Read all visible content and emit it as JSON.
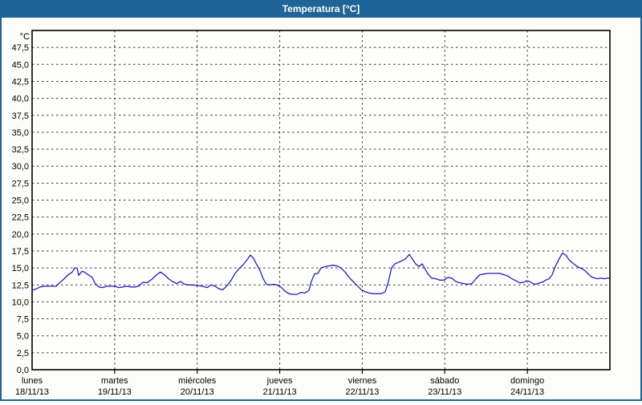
{
  "window": {
    "title": "Temperatura [°C]"
  },
  "colors": {
    "titlebar_bg": "#1e6496",
    "titlebar_text": "#ffffff",
    "window_border": "#1e6496",
    "page_bg": "#fcfdfa",
    "plot_bg": "#fefefc",
    "plot_border": "#000000",
    "gridline": "#3a3a3a",
    "tick_text": "#000000",
    "series_line": "#2121bb"
  },
  "chart_data": {
    "type": "line",
    "title": "Temperatura [°C]",
    "legend": "none",
    "grid": "dashed",
    "y_axis": {
      "unit_label": "°C",
      "min": 0,
      "max": 50,
      "tick_step": 2.5,
      "decimal_separator": ",",
      "tick_labels": [
        "0,0",
        "2,5",
        "5,0",
        "7,5",
        "10,0",
        "12,5",
        "15,0",
        "17,5",
        "20,0",
        "22,5",
        "25,0",
        "27,5",
        "30,0",
        "32,5",
        "35,0",
        "37,5",
        "40,0",
        "42,5",
        "45,0",
        "47,5"
      ]
    },
    "x_axis": {
      "hours_total": 168,
      "days": [
        {
          "name": "lunes",
          "date": "18/11/13"
        },
        {
          "name": "martes",
          "date": "19/11/13"
        },
        {
          "name": "miércoles",
          "date": "20/11/13"
        },
        {
          "name": "jueves",
          "date": "21/11/13"
        },
        {
          "name": "viernes",
          "date": "22/11/13"
        },
        {
          "name": "sábado",
          "date": "23/11/13"
        },
        {
          "name": "domingo",
          "date": "24/11/13"
        }
      ]
    },
    "series": [
      {
        "name": "Temperatura",
        "color": "#2121bb",
        "points_hours_temp": [
          [
            0,
            11.7
          ],
          [
            1.2,
            11.9
          ],
          [
            2.3,
            12.2
          ],
          [
            3.5,
            12.3
          ],
          [
            4.7,
            12.3
          ],
          [
            5.8,
            12.3
          ],
          [
            7,
            12.3
          ],
          [
            8.2,
            12.9
          ],
          [
            9.3,
            13.4
          ],
          [
            10.5,
            14
          ],
          [
            11.7,
            14.4
          ],
          [
            12.4,
            15
          ],
          [
            13.1,
            15
          ],
          [
            13.5,
            13.9
          ],
          [
            14.5,
            14.5
          ],
          [
            15.2,
            14.4
          ],
          [
            16.3,
            14
          ],
          [
            17.5,
            13.6
          ],
          [
            18.2,
            12.8
          ],
          [
            19.4,
            12.2
          ],
          [
            20.5,
            12.1
          ],
          [
            21.7,
            12.3
          ],
          [
            22.9,
            12.3
          ],
          [
            24,
            12.3
          ],
          [
            25.2,
            12.1
          ],
          [
            26.4,
            12.2
          ],
          [
            27.5,
            12.3
          ],
          [
            28.7,
            12.2
          ],
          [
            29.9,
            12.2
          ],
          [
            31,
            12.3
          ],
          [
            32.2,
            12.9
          ],
          [
            33.4,
            12.8
          ],
          [
            35,
            13.4
          ],
          [
            36.2,
            14
          ],
          [
            37.3,
            14.4
          ],
          [
            38.5,
            14
          ],
          [
            39.7,
            13.4
          ],
          [
            40.8,
            13
          ],
          [
            42,
            12.7
          ],
          [
            43.2,
            13
          ],
          [
            44.3,
            12.6
          ],
          [
            45.5,
            12.5
          ],
          [
            46.7,
            12.5
          ],
          [
            48.3,
            12.4
          ],
          [
            49.5,
            12.3
          ],
          [
            50.9,
            12.1
          ],
          [
            52,
            12.5
          ],
          [
            53.2,
            12.3
          ],
          [
            54.4,
            11.9
          ],
          [
            55.5,
            11.8
          ],
          [
            56.7,
            12.4
          ],
          [
            57.9,
            13.2
          ],
          [
            59,
            14.2
          ],
          [
            60.2,
            14.9
          ],
          [
            61.4,
            15.5
          ],
          [
            62.5,
            16.2
          ],
          [
            63.5,
            16.9
          ],
          [
            64.4,
            16.4
          ],
          [
            65.3,
            15.5
          ],
          [
            66.3,
            14.6
          ],
          [
            67.2,
            13.4
          ],
          [
            68.1,
            12.6
          ],
          [
            69.3,
            12.5
          ],
          [
            70.2,
            12.6
          ],
          [
            71.2,
            12.5
          ],
          [
            72.3,
            12.2
          ],
          [
            73.5,
            11.6
          ],
          [
            74.7,
            11.2
          ],
          [
            75.8,
            11.1
          ],
          [
            77,
            11.1
          ],
          [
            78.2,
            11.4
          ],
          [
            79.3,
            11.3
          ],
          [
            80.5,
            11.7
          ],
          [
            81.2,
            13
          ],
          [
            82.1,
            14.1
          ],
          [
            83.1,
            14.2
          ],
          [
            84,
            15
          ],
          [
            85.2,
            15.2
          ],
          [
            86.3,
            15.3
          ],
          [
            87.5,
            15.4
          ],
          [
            88.7,
            15.3
          ],
          [
            89.8,
            15
          ],
          [
            91,
            14.4
          ],
          [
            92.2,
            13.6
          ],
          [
            93.3,
            13
          ],
          [
            94.5,
            12.4
          ],
          [
            95.7,
            11.8
          ],
          [
            96.8,
            11.5
          ],
          [
            98,
            11.3
          ],
          [
            99.2,
            11.2
          ],
          [
            100.3,
            11.2
          ],
          [
            101.5,
            11.2
          ],
          [
            102.7,
            11.5
          ],
          [
            103.6,
            13
          ],
          [
            104.5,
            15
          ],
          [
            105.5,
            15.6
          ],
          [
            106.4,
            15.8
          ],
          [
            107.3,
            16
          ],
          [
            108.5,
            16.3
          ],
          [
            109.7,
            17
          ],
          [
            110.6,
            16.3
          ],
          [
            111.5,
            15.6
          ],
          [
            112.5,
            15.2
          ],
          [
            113.4,
            15.6
          ],
          [
            114.3,
            14.8
          ],
          [
            115.3,
            14
          ],
          [
            116.2,
            13.5
          ],
          [
            117.4,
            13.4
          ],
          [
            118.5,
            13.2
          ],
          [
            119.7,
            13.2
          ],
          [
            120.9,
            13.6
          ],
          [
            122,
            13.5
          ],
          [
            123.2,
            13
          ],
          [
            124.4,
            12.8
          ],
          [
            125.5,
            12.7
          ],
          [
            126.7,
            12.6
          ],
          [
            127.9,
            12.7
          ],
          [
            129,
            13.4
          ],
          [
            130.2,
            14
          ],
          [
            131.4,
            14.1
          ],
          [
            132.5,
            14.2
          ],
          [
            133.7,
            14.2
          ],
          [
            134.9,
            14.2
          ],
          [
            136,
            14.2
          ],
          [
            137.2,
            14
          ],
          [
            138.4,
            13.8
          ],
          [
            139.5,
            13.4
          ],
          [
            140.7,
            13.1
          ],
          [
            141.9,
            12.8
          ],
          [
            143,
            12.9
          ],
          [
            143.7,
            13.1
          ],
          [
            144.7,
            13
          ],
          [
            145.6,
            12.7
          ],
          [
            146.5,
            12.6
          ],
          [
            147.5,
            12.8
          ],
          [
            148.4,
            12.9
          ],
          [
            149.3,
            13.2
          ],
          [
            150.3,
            13.4
          ],
          [
            151.2,
            14
          ],
          [
            152.1,
            15.2
          ],
          [
            153.1,
            16.2
          ],
          [
            154.2,
            17.2
          ],
          [
            155.2,
            16.9
          ],
          [
            156.1,
            16.2
          ],
          [
            157,
            15.8
          ],
          [
            158,
            15.4
          ],
          [
            158.9,
            15.1
          ],
          [
            159.8,
            14.9
          ],
          [
            160.8,
            14.6
          ],
          [
            161.7,
            14.1
          ],
          [
            162.6,
            13.7
          ],
          [
            163.6,
            13.5
          ],
          [
            164.5,
            13.4
          ],
          [
            165.4,
            13.5
          ],
          [
            166.4,
            13.4
          ],
          [
            167.3,
            13.5
          ],
          [
            168,
            13.5
          ]
        ]
      }
    ]
  }
}
